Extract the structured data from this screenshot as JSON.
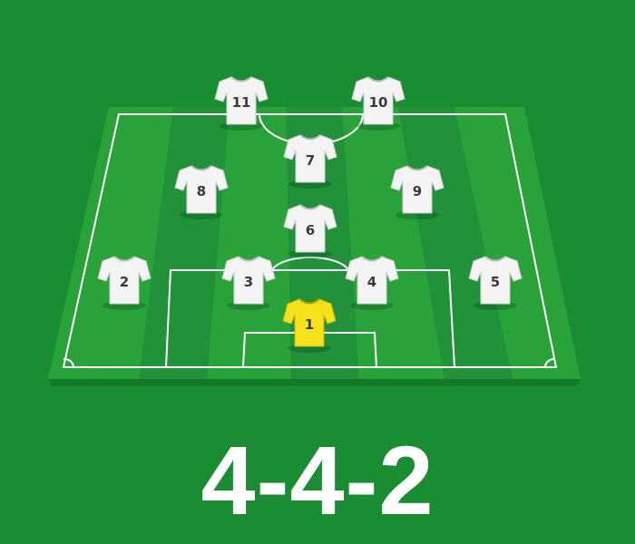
{
  "formation": "4-4-2",
  "colors": {
    "background": "#1a8c32",
    "pitch_light": "#2aa23a",
    "pitch_dark": "#21913a",
    "pitch_side": "#137a2a",
    "lines": "#ffffff",
    "outfield_jersey": "#f4f4f4",
    "goalkeeper_jersey": "#f6e21a",
    "number_color": "#3a3a3a"
  },
  "players": [
    {
      "number": "1",
      "role": "goalkeeper"
    },
    {
      "number": "2",
      "role": "outfield"
    },
    {
      "number": "3",
      "role": "outfield"
    },
    {
      "number": "4",
      "role": "outfield"
    },
    {
      "number": "5",
      "role": "outfield"
    },
    {
      "number": "6",
      "role": "outfield"
    },
    {
      "number": "7",
      "role": "outfield"
    },
    {
      "number": "8",
      "role": "outfield"
    },
    {
      "number": "9",
      "role": "outfield"
    },
    {
      "number": "10",
      "role": "outfield"
    },
    {
      "number": "11",
      "role": "outfield"
    }
  ]
}
